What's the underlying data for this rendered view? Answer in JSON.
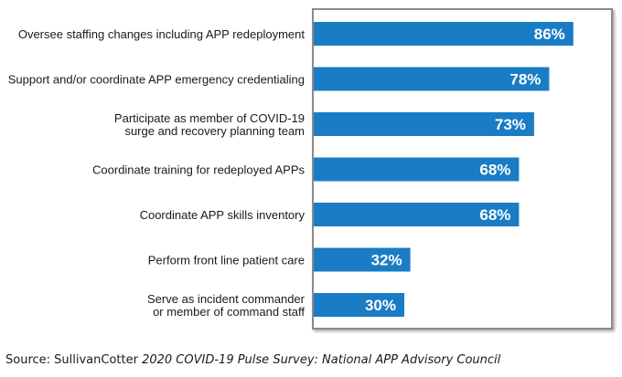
{
  "chart_data": {
    "type": "bar",
    "orientation": "horizontal",
    "categories": [
      [
        "Oversee staffing changes including APP redeployment"
      ],
      [
        "Support and/or coordinate APP emergency credentialing"
      ],
      [
        "Participate as member of COVID-19",
        "surge and recovery planning team"
      ],
      [
        "Coordinate training for redeployed APPs"
      ],
      [
        "Coordinate APP skills inventory"
      ],
      [
        "Perform front line patient care"
      ],
      [
        "Serve as incident commander",
        "or member of command staff"
      ]
    ],
    "values": [
      86,
      78,
      73,
      68,
      68,
      32,
      30
    ],
    "value_labels": [
      "86%",
      "78%",
      "73%",
      "68%",
      "68%",
      "32%",
      "30%"
    ],
    "xlim": [
      0,
      100
    ],
    "grid": false,
    "bar_color": "#1a7cc4",
    "frame_color": "#8a8a8a"
  },
  "source": {
    "prefix": "Source: SullivanCotter ",
    "title": "2020 COVID-19 Pulse Survey: National APP Advisory Council"
  }
}
